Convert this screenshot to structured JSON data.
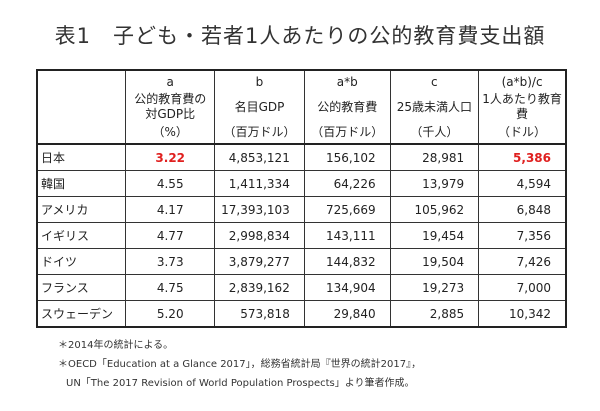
{
  "title": "表1　子ども・若者1人あたりの公的教育費支出額",
  "columns": [
    {
      "code": "a",
      "label": "公的教育費の対GDP比",
      "unit": "（%）"
    },
    {
      "code": "b",
      "label": "名目GDP",
      "unit": "（百万ドル）"
    },
    {
      "code": "a*b",
      "label": "公的教育費",
      "unit": "（百万ドル）"
    },
    {
      "code": "c",
      "label": "25歳未満人口",
      "unit": "（千人）"
    },
    {
      "code": "(a*b)/c",
      "label": "1人あたり教育費",
      "unit": "（ドル）"
    }
  ],
  "rows": [
    {
      "country": "日本",
      "values": [
        "3.22",
        "4,853,121",
        "156,102",
        "28,981",
        "5,386"
      ]
    },
    {
      "country": "韓国",
      "values": [
        "4.55",
        "1,411,334",
        "64,226",
        "13,979",
        "4,594"
      ]
    },
    {
      "country": "アメリカ",
      "values": [
        "4.17",
        "17,393,103",
        "725,669",
        "105,962",
        "6,848"
      ]
    },
    {
      "country": "イギリス",
      "values": [
        "4.77",
        "2,998,834",
        "143,111",
        "19,454",
        "7,356"
      ]
    },
    {
      "country": "ドイツ",
      "values": [
        "3.73",
        "3,879,277",
        "144,832",
        "19,504",
        "7,426"
      ]
    },
    {
      "country": "フランス",
      "values": [
        "4.75",
        "2,839,162",
        "134,904",
        "19,273",
        "7,000"
      ]
    },
    {
      "country": "スウェーデン",
      "values": [
        "5.20",
        "573,818",
        "29,840",
        "2,885",
        "10,342"
      ]
    }
  ],
  "highlight_color": "#e0201f",
  "notes": [
    "＊2014年の統計による。",
    "＊OECD「Education at a Glance 2017」，総務省統計局『世界の統計2017』，",
    "UN「The 2017 Revision of World Population Prospects」より筆者作成。"
  ]
}
